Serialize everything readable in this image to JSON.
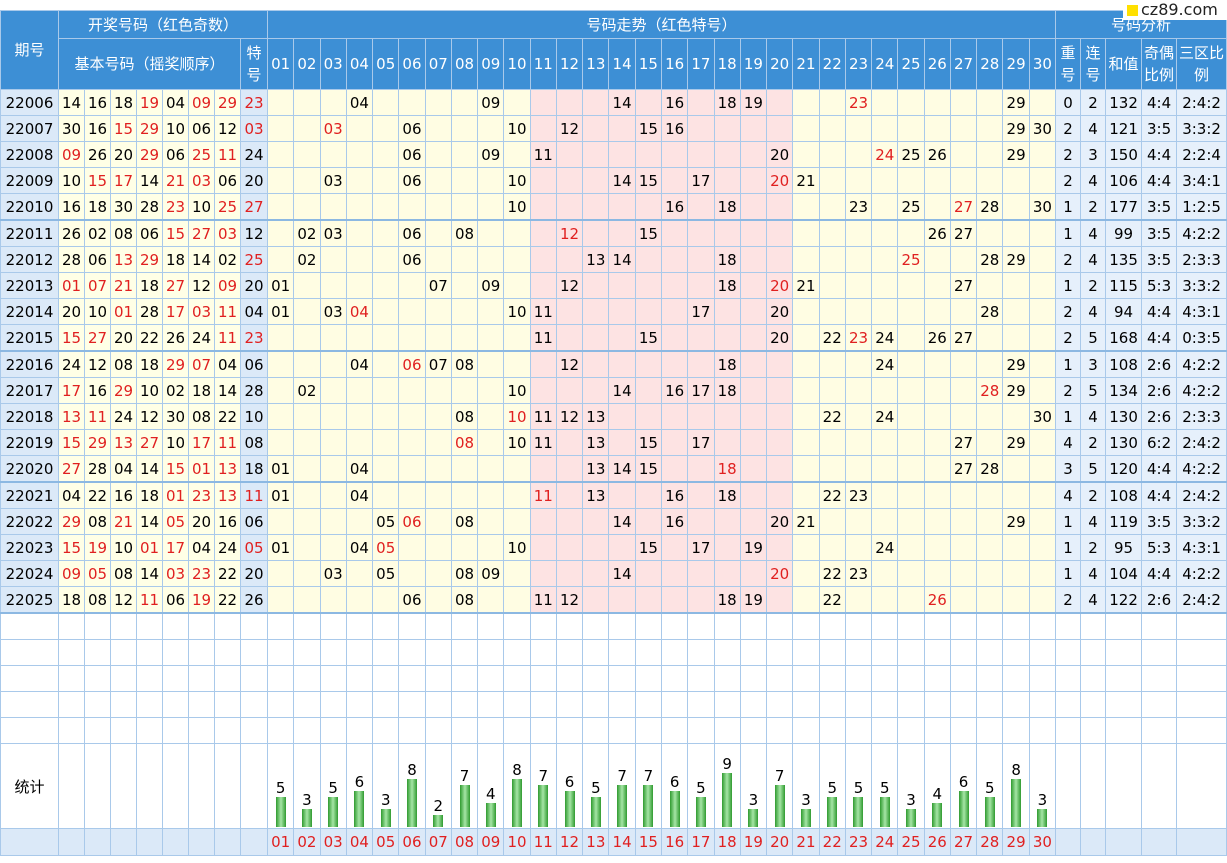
{
  "header": {
    "issue": "期号",
    "draw": "开奖号码（红色奇数）",
    "trend": "号码走势（红色特号）",
    "analysis": "号码分析",
    "basic": "基本号码（摇奖顺序）",
    "special": "特号",
    "numbers": [
      "01",
      "02",
      "03",
      "04",
      "05",
      "06",
      "07",
      "08",
      "09",
      "10",
      "11",
      "12",
      "13",
      "14",
      "15",
      "16",
      "17",
      "18",
      "19",
      "20",
      "21",
      "22",
      "23",
      "24",
      "25",
      "26",
      "27",
      "28",
      "29",
      "30"
    ],
    "analysis_cols": [
      "重号",
      "连号",
      "和值",
      "奇偶比例",
      "三区比例"
    ]
  },
  "rows": [
    {
      "issue": "22006",
      "basic": [
        "14",
        "16",
        "18",
        "19",
        "04",
        "09",
        "29"
      ],
      "special": "23",
      "repeat": 0,
      "consecutive": 2,
      "sum": 132,
      "odd_even": "4:4",
      "zones": "2:4:2"
    },
    {
      "issue": "22007",
      "basic": [
        "30",
        "16",
        "15",
        "29",
        "10",
        "06",
        "12"
      ],
      "special": "03",
      "repeat": 2,
      "consecutive": 4,
      "sum": 121,
      "odd_even": "3:5",
      "zones": "3:3:2"
    },
    {
      "issue": "22008",
      "basic": [
        "09",
        "26",
        "20",
        "29",
        "06",
        "25",
        "11"
      ],
      "special": "24",
      "repeat": 2,
      "consecutive": 3,
      "sum": 150,
      "odd_even": "4:4",
      "zones": "2:2:4"
    },
    {
      "issue": "22009",
      "basic": [
        "10",
        "15",
        "17",
        "14",
        "21",
        "03",
        "06"
      ],
      "special": "20",
      "repeat": 2,
      "consecutive": 4,
      "sum": 106,
      "odd_even": "4:4",
      "zones": "3:4:1"
    },
    {
      "issue": "22010",
      "basic": [
        "16",
        "18",
        "30",
        "28",
        "23",
        "10",
        "25"
      ],
      "special": "27",
      "repeat": 1,
      "consecutive": 2,
      "sum": 177,
      "odd_even": "3:5",
      "zones": "1:2:5"
    },
    {
      "issue": "22011",
      "basic": [
        "26",
        "02",
        "08",
        "06",
        "15",
        "27",
        "03"
      ],
      "special": "12",
      "repeat": 1,
      "consecutive": 4,
      "sum": 99,
      "odd_even": "3:5",
      "zones": "4:2:2"
    },
    {
      "issue": "22012",
      "basic": [
        "28",
        "06",
        "13",
        "29",
        "18",
        "14",
        "02"
      ],
      "special": "25",
      "repeat": 2,
      "consecutive": 4,
      "sum": 135,
      "odd_even": "3:5",
      "zones": "2:3:3"
    },
    {
      "issue": "22013",
      "basic": [
        "01",
        "07",
        "21",
        "18",
        "27",
        "12",
        "09"
      ],
      "special": "20",
      "repeat": 1,
      "consecutive": 2,
      "sum": 115,
      "odd_even": "5:3",
      "zones": "3:3:2"
    },
    {
      "issue": "22014",
      "basic": [
        "20",
        "10",
        "01",
        "28",
        "17",
        "03",
        "11"
      ],
      "special": "04",
      "repeat": 2,
      "consecutive": 4,
      "sum": 94,
      "odd_even": "4:4",
      "zones": "4:3:1"
    },
    {
      "issue": "22015",
      "basic": [
        "15",
        "27",
        "20",
        "22",
        "26",
        "24",
        "11"
      ],
      "special": "23",
      "repeat": 2,
      "consecutive": 5,
      "sum": 168,
      "odd_even": "4:4",
      "zones": "0:3:5"
    },
    {
      "issue": "22016",
      "basic": [
        "24",
        "12",
        "08",
        "18",
        "29",
        "07",
        "04"
      ],
      "special": "06",
      "repeat": 1,
      "consecutive": 3,
      "sum": 108,
      "odd_even": "2:6",
      "zones": "4:2:2"
    },
    {
      "issue": "22017",
      "basic": [
        "17",
        "16",
        "29",
        "10",
        "02",
        "18",
        "14"
      ],
      "special": "28",
      "repeat": 2,
      "consecutive": 5,
      "sum": 134,
      "odd_even": "2:6",
      "zones": "4:2:2"
    },
    {
      "issue": "22018",
      "basic": [
        "13",
        "11",
        "24",
        "12",
        "30",
        "08",
        "22"
      ],
      "special": "10",
      "repeat": 1,
      "consecutive": 4,
      "sum": 130,
      "odd_even": "2:6",
      "zones": "2:3:3"
    },
    {
      "issue": "22019",
      "basic": [
        "15",
        "29",
        "13",
        "27",
        "10",
        "17",
        "11"
      ],
      "special": "08",
      "repeat": 4,
      "consecutive": 2,
      "sum": 130,
      "odd_even": "6:2",
      "zones": "2:4:2"
    },
    {
      "issue": "22020",
      "basic": [
        "27",
        "28",
        "04",
        "14",
        "15",
        "01",
        "13"
      ],
      "special": "18",
      "repeat": 3,
      "consecutive": 5,
      "sum": 120,
      "odd_even": "4:4",
      "zones": "4:2:2"
    },
    {
      "issue": "22021",
      "basic": [
        "04",
        "22",
        "16",
        "18",
        "01",
        "23",
        "13"
      ],
      "special": "11",
      "repeat": 4,
      "consecutive": 2,
      "sum": 108,
      "odd_even": "4:4",
      "zones": "2:4:2"
    },
    {
      "issue": "22022",
      "basic": [
        "29",
        "08",
        "21",
        "14",
        "05",
        "20",
        "16"
      ],
      "special": "06",
      "repeat": 1,
      "consecutive": 4,
      "sum": 119,
      "odd_even": "3:5",
      "zones": "3:3:2"
    },
    {
      "issue": "22023",
      "basic": [
        "15",
        "19",
        "10",
        "01",
        "17",
        "04",
        "24"
      ],
      "special": "05",
      "repeat": 1,
      "consecutive": 2,
      "sum": 95,
      "odd_even": "5:3",
      "zones": "4:3:1"
    },
    {
      "issue": "22024",
      "basic": [
        "09",
        "05",
        "08",
        "14",
        "03",
        "23",
        "22"
      ],
      "special": "20",
      "repeat": 1,
      "consecutive": 4,
      "sum": 104,
      "odd_even": "4:4",
      "zones": "4:2:2"
    },
    {
      "issue": "22025",
      "basic": [
        "18",
        "08",
        "12",
        "11",
        "06",
        "19",
        "22"
      ],
      "special": "26",
      "repeat": 2,
      "consecutive": 4,
      "sum": 122,
      "odd_even": "2:6",
      "zones": "2:4:2"
    }
  ],
  "stats": {
    "label": "统计",
    "counts": [
      5,
      3,
      5,
      6,
      3,
      8,
      2,
      7,
      4,
      8,
      7,
      6,
      5,
      7,
      7,
      6,
      5,
      9,
      3,
      7,
      3,
      5,
      5,
      5,
      3,
      4,
      6,
      5,
      8,
      3
    ]
  },
  "watermark": "cz89.com"
}
